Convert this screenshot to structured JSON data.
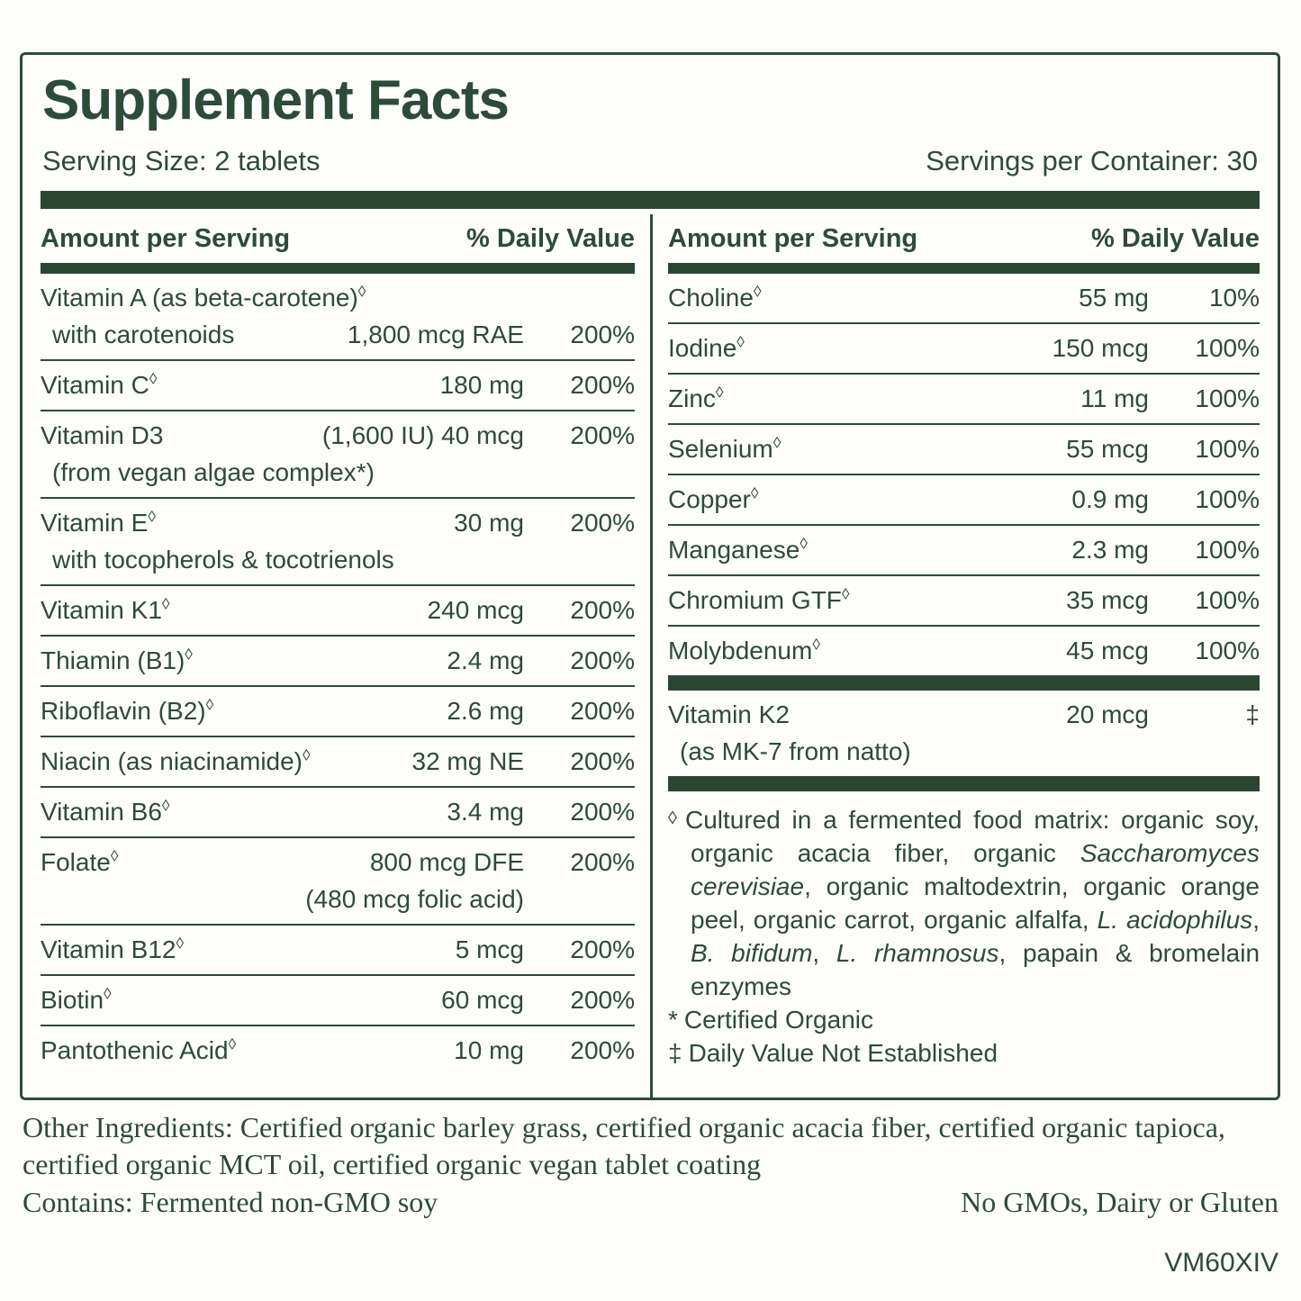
{
  "colors": {
    "green": "#2d4b39",
    "bar_green": "#2a4733",
    "background": "#fdfdfb"
  },
  "header": {
    "title": "Supplement Facts",
    "serving_size": "Serving Size: 2 tablets",
    "servings_per_container": "Servings per Container: 30"
  },
  "columns": {
    "amount_header": "Amount per Serving",
    "dv_header": "% Daily Value"
  },
  "left_rows": [
    {
      "l1": {
        "name": "Vitamin A (as beta-carotene)",
        "sup": "◊"
      },
      "l2": {
        "name": "with carotenoids",
        "amount": "1,800 mcg RAE",
        "dv": "200%"
      }
    },
    {
      "l1": {
        "name": "Vitamin C",
        "sup": "◊",
        "amount": "180 mg",
        "dv": "200%"
      }
    },
    {
      "l1": {
        "name": "Vitamin D3",
        "amount": "(1,600 IU) 40 mcg",
        "dv": "200%"
      },
      "l2": {
        "name": "(from vegan algae complex*)"
      }
    },
    {
      "l1": {
        "name": "Vitamin E",
        "sup": "◊",
        "amount": "30 mg",
        "dv": "200%"
      },
      "l2": {
        "name": "with tocopherols & tocotrienols"
      }
    },
    {
      "l1": {
        "name": "Vitamin K1",
        "sup": "◊",
        "amount": "240 mcg",
        "dv": "200%"
      }
    },
    {
      "l1": {
        "name": "Thiamin (B1)",
        "sup": "◊",
        "amount": "2.4 mg",
        "dv": "200%"
      }
    },
    {
      "l1": {
        "name": "Riboflavin (B2)",
        "sup": "◊",
        "amount": "2.6 mg",
        "dv": "200%"
      }
    },
    {
      "l1": {
        "name": "Niacin (as niacinamide)",
        "sup": "◊",
        "amount": "32 mg NE",
        "dv": "200%"
      }
    },
    {
      "l1": {
        "name": "Vitamin B6",
        "sup": "◊",
        "amount": "3.4 mg",
        "dv": "200%"
      }
    },
    {
      "l1": {
        "name": "Folate",
        "sup": "◊",
        "amount": "800 mcg DFE",
        "dv": "200%"
      },
      "l2": {
        "amount": "(480 mcg folic acid)"
      }
    },
    {
      "l1": {
        "name": "Vitamin B12",
        "sup": "◊",
        "amount": "5 mcg",
        "dv": "200%"
      }
    },
    {
      "l1": {
        "name": "Biotin",
        "sup": "◊",
        "amount": "60 mcg",
        "dv": "200%"
      }
    },
    {
      "l1": {
        "name": "Pantothenic Acid",
        "sup": "◊",
        "amount": "10 mg",
        "dv": "200%"
      }
    }
  ],
  "right_rows_minerals": [
    {
      "l1": {
        "name": "Choline",
        "sup": "◊",
        "amount": "55 mg",
        "dv": "10%"
      }
    },
    {
      "l1": {
        "name": "Iodine",
        "sup": "◊",
        "amount": "150 mcg",
        "dv": "100%"
      }
    },
    {
      "l1": {
        "name": "Zinc",
        "sup": "◊",
        "amount": "11 mg",
        "dv": "100%"
      }
    },
    {
      "l1": {
        "name": "Selenium",
        "sup": "◊",
        "amount": "55 mcg",
        "dv": "100%"
      }
    },
    {
      "l1": {
        "name": "Copper",
        "sup": "◊",
        "amount": "0.9 mg",
        "dv": "100%"
      }
    },
    {
      "l1": {
        "name": "Manganese",
        "sup": "◊",
        "amount": "2.3 mg",
        "dv": "100%"
      }
    },
    {
      "l1": {
        "name": "Chromium GTF",
        "sup": "◊",
        "amount": "35 mcg",
        "dv": "100%"
      }
    },
    {
      "l1": {
        "name": "Molybdenum",
        "sup": "◊",
        "amount": "45 mcg",
        "dv": "100%"
      }
    }
  ],
  "right_rows_k2": [
    {
      "l1": {
        "name": "Vitamin K2",
        "amount": "20 mcg",
        "dv": "‡"
      },
      "l2": {
        "name": "(as MK-7 from natto)"
      }
    }
  ],
  "footnotes": {
    "matrix": {
      "marker": "◊",
      "segments": [
        {
          "text": "Cultured in a fermented food matrix: organic soy, organic acacia fiber, organic ",
          "italic": false
        },
        {
          "text": "Saccharomyces cerevisiae",
          "italic": true
        },
        {
          "text": ", organic maltodextrin, organic orange peel, organic carrot, organic alfalfa, ",
          "italic": false
        },
        {
          "text": "L. acidophilus",
          "italic": true
        },
        {
          "text": ", ",
          "italic": false
        },
        {
          "text": "B. bifidum",
          "italic": true
        },
        {
          "text": ", ",
          "italic": false
        },
        {
          "text": "L. rhamnosus",
          "italic": true
        },
        {
          "text": ", papain & bromelain enzymes",
          "italic": false
        }
      ]
    },
    "organic": {
      "marker": "*",
      "text": "Certified Organic"
    },
    "dv_note": {
      "marker": "‡",
      "text": "Daily Value Not Established"
    }
  },
  "bottom": {
    "other_ingredients": "Other Ingredients: Certified organic barley grass, certified organic acacia fiber, certified organic tapioca, certified organic MCT oil, certified organic vegan tablet coating",
    "contains": "Contains: Fermented non-GMO soy",
    "no_gmos": "No GMOs, Dairy or Gluten",
    "code": "VM60XIV"
  }
}
